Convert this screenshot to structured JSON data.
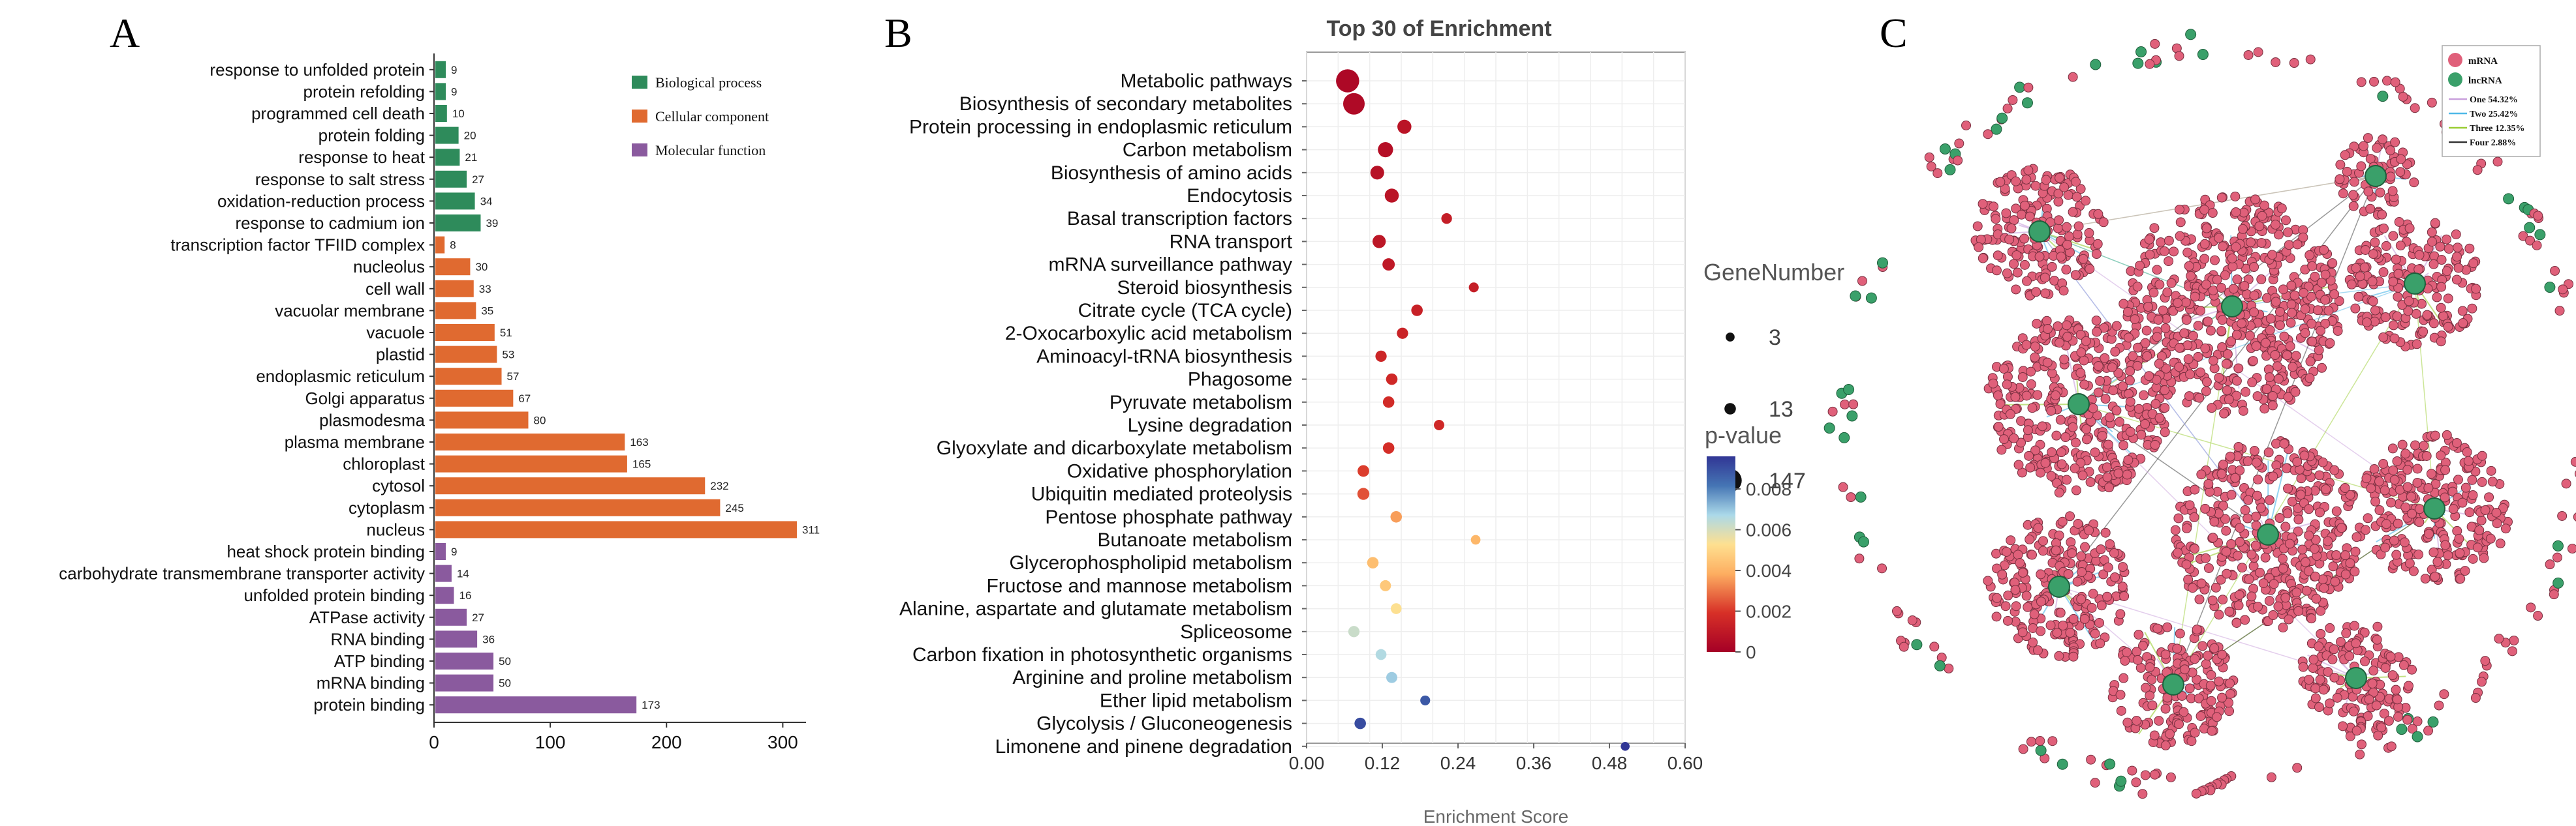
{
  "panels": {
    "a": "A",
    "b": "B",
    "c": "C"
  },
  "chart_data": [
    {
      "type": "bar",
      "orientation": "horizontal",
      "categories": [
        "response to unfolded protein",
        "protein refolding",
        "programmed cell death",
        "protein folding",
        "response to heat",
        "response to salt stress",
        "oxidation-reduction process",
        "response to cadmium ion",
        "transcription factor TFIID complex",
        "nucleolus",
        "cell wall",
        "vacuolar membrane",
        "vacuole",
        "plastid",
        "endoplasmic reticulum",
        "Golgi apparatus",
        "plasmodesma",
        "plasma membrane",
        "chloroplast",
        "cytosol",
        "cytoplasm",
        "nucleus",
        "heat shock protein binding",
        "carbohydrate transmembrane transporter activity",
        "unfolded protein binding",
        "ATPase activity",
        "RNA binding",
        "ATP binding",
        "mRNA binding",
        "protein binding"
      ],
      "values": [
        9,
        9,
        10,
        20,
        21,
        27,
        34,
        39,
        8,
        30,
        33,
        35,
        51,
        53,
        57,
        67,
        80,
        163,
        165,
        232,
        245,
        311,
        9,
        14,
        16,
        27,
        36,
        50,
        50,
        173
      ],
      "groups": [
        0,
        0,
        0,
        0,
        0,
        0,
        0,
        0,
        1,
        1,
        1,
        1,
        1,
        1,
        1,
        1,
        1,
        1,
        1,
        1,
        1,
        1,
        2,
        2,
        2,
        2,
        2,
        2,
        2,
        2
      ],
      "legend": [
        {
          "name": "Biological process",
          "color": "#2e8b5b"
        },
        {
          "name": "Cellular component",
          "color": "#e06a30"
        },
        {
          "name": "Molecular function",
          "color": "#8a5a9e"
        }
      ],
      "legend_position": "top-right",
      "xlim": [
        0,
        320
      ],
      "xticks": [
        0,
        100,
        200,
        300
      ]
    },
    {
      "type": "scatter",
      "title": "Top 30 of  Enrichment",
      "xlabel": "Enrichment Score",
      "xlim": [
        0,
        0.6
      ],
      "xticks": [
        "0.00",
        "0.12",
        "0.24",
        "0.36",
        "0.48",
        "0.60"
      ],
      "grid": true,
      "categories": [
        "Metabolic pathways",
        "Biosynthesis of secondary metabolites",
        "Protein processing in endoplasmic reticulum",
        "Carbon metabolism",
        "Biosynthesis of amino acids",
        "Endocytosis",
        "Basal transcription factors",
        "RNA transport",
        "mRNA surveillance pathway",
        "Steroid biosynthesis",
        "Citrate cycle (TCA cycle)",
        "2-Oxocarboxylic acid metabolism",
        "Aminoacyl-tRNA biosynthesis",
        "Phagosome",
        "Pyruvate metabolism",
        "Lysine degradation",
        "Glyoxylate and dicarboxylate metabolism",
        "Oxidative phosphorylation",
        "Ubiquitin mediated proteolysis",
        "Pentose phosphate pathway",
        "Butanoate metabolism",
        "Glycerophospholipid metabolism",
        "Fructose and mannose metabolism",
        "Alanine, aspartate and glutamate metabolism",
        "Spliceosome",
        "Carbon fixation in photosynthetic organisms",
        "Arginine and proline metabolism",
        "Ether lipid metabolism",
        "Glycolysis / Gluconeogenesis",
        "Limonene and pinene degradation"
      ],
      "x": [
        0.065,
        0.075,
        0.155,
        0.125,
        0.112,
        0.135,
        0.222,
        0.115,
        0.13,
        0.265,
        0.175,
        0.152,
        0.118,
        0.135,
        0.13,
        0.21,
        0.13,
        0.09,
        0.09,
        0.142,
        0.268,
        0.105,
        0.125,
        0.142,
        0.075,
        0.118,
        0.135,
        0.188,
        0.085,
        0.505
      ],
      "gene_number": [
        147,
        120,
        30,
        40,
        28,
        30,
        9,
        24,
        18,
        6,
        13,
        12,
        12,
        13,
        13,
        8,
        13,
        14,
        16,
        13,
        5,
        13,
        11,
        10,
        12,
        10,
        11,
        6,
        13,
        3
      ],
      "p_value": [
        0.0003,
        0.0004,
        0.0008,
        0.0006,
        0.0007,
        0.0008,
        0.0012,
        0.0009,
        0.001,
        0.0012,
        0.0013,
        0.0014,
        0.0015,
        0.0016,
        0.0017,
        0.0016,
        0.0018,
        0.0021,
        0.0024,
        0.0036,
        0.0041,
        0.0043,
        0.0046,
        0.0053,
        0.0062,
        0.0066,
        0.0069,
        0.0088,
        0.0091,
        0.0096
      ],
      "size_legend": {
        "title": "GeneNumber",
        "values": [
          3,
          13,
          147
        ]
      },
      "color_legend": {
        "title": "p-value",
        "ticks": [
          "0.008",
          "0.006",
          "0.004",
          "0.002",
          "0"
        ],
        "range": [
          0,
          0.0096
        ]
      }
    },
    {
      "type": "network",
      "legend": [
        {
          "name": "mRNA",
          "kind": "node",
          "color": "#e0607a"
        },
        {
          "name": "lncRNA",
          "kind": "node",
          "color": "#3aa06a"
        },
        {
          "name": "One 54.32%",
          "kind": "edge",
          "color": "#c9a0dc"
        },
        {
          "name": "Two 25.42%",
          "kind": "edge",
          "color": "#4fb8e8"
        },
        {
          "name": "Three 12.35%",
          "kind": "edge",
          "color": "#9acd32"
        },
        {
          "name": "Four 2.88%",
          "kind": "edge",
          "color": "#333333"
        }
      ]
    }
  ]
}
